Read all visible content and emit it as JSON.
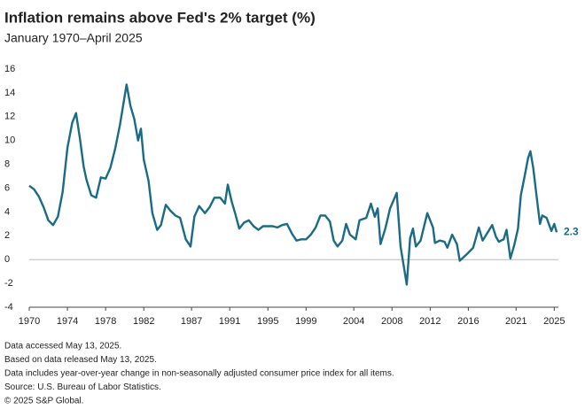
{
  "chart_data": {
    "type": "line",
    "title": "Inflation remains above Fed's 2% target (%)",
    "subtitle": "January 1970–April 2025",
    "color": "#1a6b84",
    "grid": false,
    "xlim": [
      1970,
      2025.25
    ],
    "xticks": [
      1970,
      1974,
      1978,
      1982,
      1987,
      1991,
      1995,
      1999,
      2004,
      2008,
      2012,
      2016,
      2021,
      2025
    ],
    "ylim": [
      -4,
      16
    ],
    "yticks": [
      -4,
      -2,
      0,
      2,
      4,
      6,
      8,
      10,
      12,
      14,
      16
    ],
    "x": [
      1970,
      1970.5,
      1971,
      1971.5,
      1972,
      1972.5,
      1973,
      1973.5,
      1974,
      1974.5,
      1974.9,
      1975.3,
      1975.7,
      1976,
      1976.5,
      1977,
      1977.5,
      1978,
      1978.5,
      1979,
      1979.5,
      1980.2,
      1980.6,
      1981,
      1981.4,
      1981.7,
      1982,
      1982.5,
      1982.9,
      1983.4,
      1983.8,
      1984.3,
      1984.8,
      1985.3,
      1985.8,
      1986.4,
      1986.9,
      1987.3,
      1987.8,
      1988.4,
      1988.9,
      1989.4,
      1990,
      1990.5,
      1990.8,
      1991.2,
      1991.6,
      1992,
      1992.5,
      1993,
      1993.5,
      1994,
      1994.5,
      1995,
      1995.5,
      1996,
      1996.5,
      1997,
      1997.5,
      1998,
      1998.5,
      1999,
      1999.5,
      2000,
      2000.5,
      2001,
      2001.5,
      2001.9,
      2002.3,
      2002.8,
      2003.2,
      2003.6,
      2004.2,
      2004.6,
      2005.3,
      2005.8,
      2006.2,
      2006.5,
      2006.8,
      2007.3,
      2007.8,
      2008.5,
      2008.9,
      2009.2,
      2009.55,
      2009.9,
      2010.2,
      2010.5,
      2011,
      2011.7,
      2012.3,
      2012.5,
      2013,
      2013.5,
      2013.8,
      2014.3,
      2014.8,
      2015.1,
      2015.5,
      2015.9,
      2016.5,
      2017.1,
      2017.5,
      2018.5,
      2018.9,
      2019.2,
      2019.7,
      2020.0,
      2020.4,
      2020.8,
      2021.2,
      2021.5,
      2021.9,
      2022.25,
      2022.5,
      2022.8,
      2023.2,
      2023.5,
      2023.75,
      2024.2,
      2024.7,
      2025.0,
      2025.25
    ],
    "values": [
      6.2,
      5.9,
      5.3,
      4.4,
      3.3,
      2.9,
      3.6,
      5.7,
      9.4,
      11.5,
      12.3,
      10.2,
      7.8,
      6.7,
      5.4,
      5.2,
      6.9,
      6.8,
      7.7,
      9.3,
      11.3,
      14.7,
      12.9,
      11.8,
      10.0,
      11.0,
      8.4,
      6.6,
      3.9,
      2.5,
      2.9,
      4.6,
      4.1,
      3.7,
      3.5,
      1.7,
      1.1,
      3.6,
      4.5,
      3.9,
      4.4,
      5.2,
      5.2,
      4.7,
      6.3,
      4.9,
      3.8,
      2.6,
      3.1,
      3.3,
      2.8,
      2.5,
      2.8,
      2.8,
      2.8,
      2.7,
      2.9,
      3.0,
      2.2,
      1.6,
      1.7,
      1.7,
      2.1,
      2.7,
      3.7,
      3.7,
      3.2,
      1.6,
      1.1,
      1.6,
      3.0,
      2.1,
      1.7,
      3.3,
      3.5,
      4.7,
      3.6,
      4.3,
      1.3,
      2.6,
      4.3,
      5.6,
      1.1,
      -0.4,
      -2.1,
      1.8,
      2.6,
      1.1,
      1.6,
      3.9,
      2.7,
      1.4,
      1.6,
      1.5,
      1.0,
      2.1,
      1.3,
      -0.1,
      0.2,
      0.5,
      1.0,
      2.7,
      1.6,
      2.9,
      1.9,
      1.5,
      1.7,
      2.5,
      0.1,
      1.2,
      2.6,
      5.4,
      7.0,
      8.5,
      9.1,
      7.7,
      5.0,
      3.0,
      3.7,
      3.5,
      2.4,
      3.0,
      2.3
    ]
  },
  "notes": [
    "Data accessed May 13, 2025.",
    "Based on data released May 13, 2025.",
    "Data includes year-over-year change in non-seasonally adjusted consumer price index for all items.",
    "Source: U.S. Bureau of Labor Statistics.",
    "© 2025 S&P Global."
  ]
}
